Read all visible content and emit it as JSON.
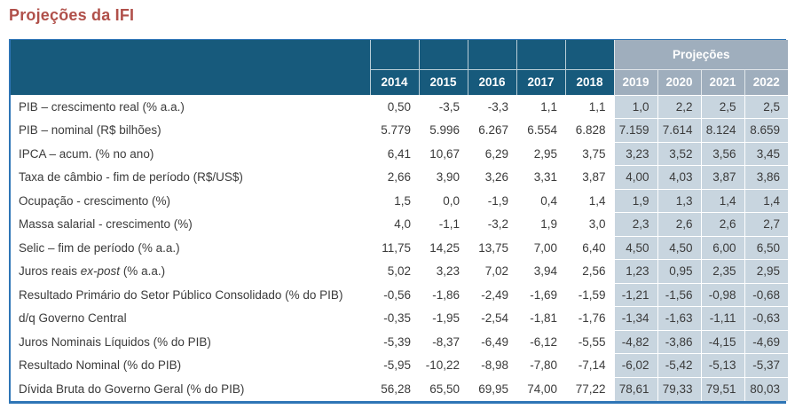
{
  "title": "Projeções da IFI",
  "table": {
    "projections_header": "Projeções",
    "historical_years": [
      "2014",
      "2015",
      "2016",
      "2017",
      "2018"
    ],
    "projected_years": [
      "2019",
      "2020",
      "2021",
      "2022"
    ],
    "rows": [
      {
        "label": "PIB – crescimento real (% a.a.)",
        "values": [
          "0,50",
          "-3,5",
          "-3,3",
          "1,1",
          "1,1",
          "1,0",
          "2,2",
          "2,5",
          "2,5"
        ]
      },
      {
        "label": "PIB – nominal (R$ bilhões)",
        "values": [
          "5.779",
          "5.996",
          "6.267",
          "6.554",
          "6.828",
          "7.159",
          "7.614",
          "8.124",
          "8.659"
        ]
      },
      {
        "label": "IPCA – acum. (% no ano)",
        "values": [
          "6,41",
          "10,67",
          "6,29",
          "2,95",
          "3,75",
          "3,23",
          "3,52",
          "3,56",
          "3,45"
        ]
      },
      {
        "label": "Taxa de câmbio - fim de período (R$/US$)",
        "values": [
          "2,66",
          "3,90",
          "3,26",
          "3,31",
          "3,87",
          "4,00",
          "4,03",
          "3,87",
          "3,86"
        ]
      },
      {
        "label": "Ocupação - crescimento (%)",
        "values": [
          "1,5",
          "0,0",
          "-1,9",
          "0,4",
          "1,4",
          "1,9",
          "1,3",
          "1,4",
          "1,4"
        ]
      },
      {
        "label": "Massa salarial - crescimento (%)",
        "values": [
          "4,0",
          "-1,1",
          "-3,2",
          "1,9",
          "3,0",
          "2,3",
          "2,6",
          "2,6",
          "2,7"
        ]
      },
      {
        "label": "Selic – fim de período (% a.a.)",
        "values": [
          "11,75",
          "14,25",
          "13,75",
          "7,00",
          "6,40",
          "4,50",
          "4,50",
          "6,00",
          "6,50"
        ]
      },
      {
        "label": "Juros reais ex-post (% a.a.)",
        "italic_substring": "ex-post",
        "values": [
          "5,02",
          "3,23",
          "7,02",
          "3,94",
          "2,56",
          "1,23",
          "0,95",
          "2,35",
          "2,95"
        ]
      },
      {
        "label": "Resultado Primário do Setor Público Consolidado (% do PIB)",
        "values": [
          "-0,56",
          "-1,86",
          "-2,49",
          "-1,69",
          "-1,59",
          "-1,21",
          "-1,56",
          "-0,98",
          "-0,68"
        ]
      },
      {
        "label": "d/q Governo Central",
        "values": [
          "-0,35",
          "-1,95",
          "-2,54",
          "-1,81",
          "-1,76",
          "-1,34",
          "-1,63",
          "-1,11",
          "-0,63"
        ]
      },
      {
        "label": "Juros Nominais Líquidos (% do PIB)",
        "values": [
          "-5,39",
          "-8,37",
          "-6,49",
          "-6,12",
          "-5,55",
          "-4,82",
          "-3,86",
          "-4,15",
          "-4,69"
        ]
      },
      {
        "label": "Resultado Nominal (% do PIB)",
        "values": [
          "-5,95",
          "-10,22",
          "-8,98",
          "-7,80",
          "-7,14",
          "-6,02",
          "-5,42",
          "-5,13",
          "-5,37"
        ]
      },
      {
        "label": "Dívida Bruta do Governo Geral (% do PIB)",
        "values": [
          "56,28",
          "65,50",
          "69,95",
          "74,00",
          "77,22",
          "78,61",
          "79,33",
          "79,51",
          "80,03"
        ]
      }
    ]
  },
  "colors": {
    "title_red": "#B0504A",
    "header_dark_blue": "#175A7C",
    "projections_header_gray": "#9FAEBD",
    "projection_cell_blue": "#C8D5DF",
    "table_border_blue": "#2E75B6",
    "body_text": "#3B3B3B"
  }
}
